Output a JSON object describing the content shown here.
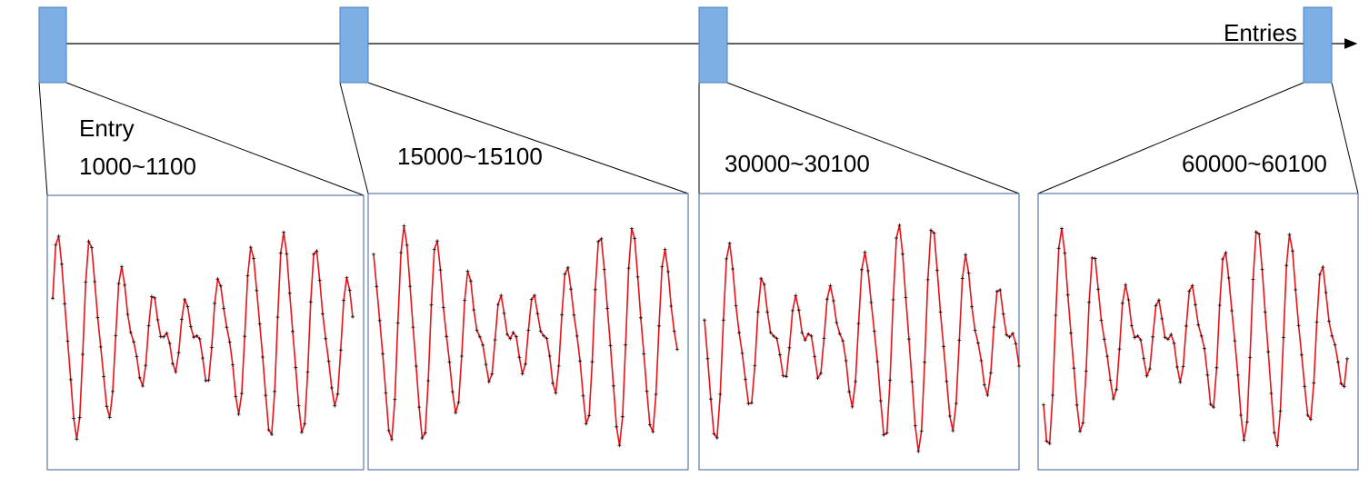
{
  "axis_label": "Entries",
  "panels": [
    {
      "title": "Entry",
      "range": "1000~1100"
    },
    {
      "range": "15000~15100"
    },
    {
      "range": "30000~30100"
    },
    {
      "range": "60000~60100"
    }
  ]
}
